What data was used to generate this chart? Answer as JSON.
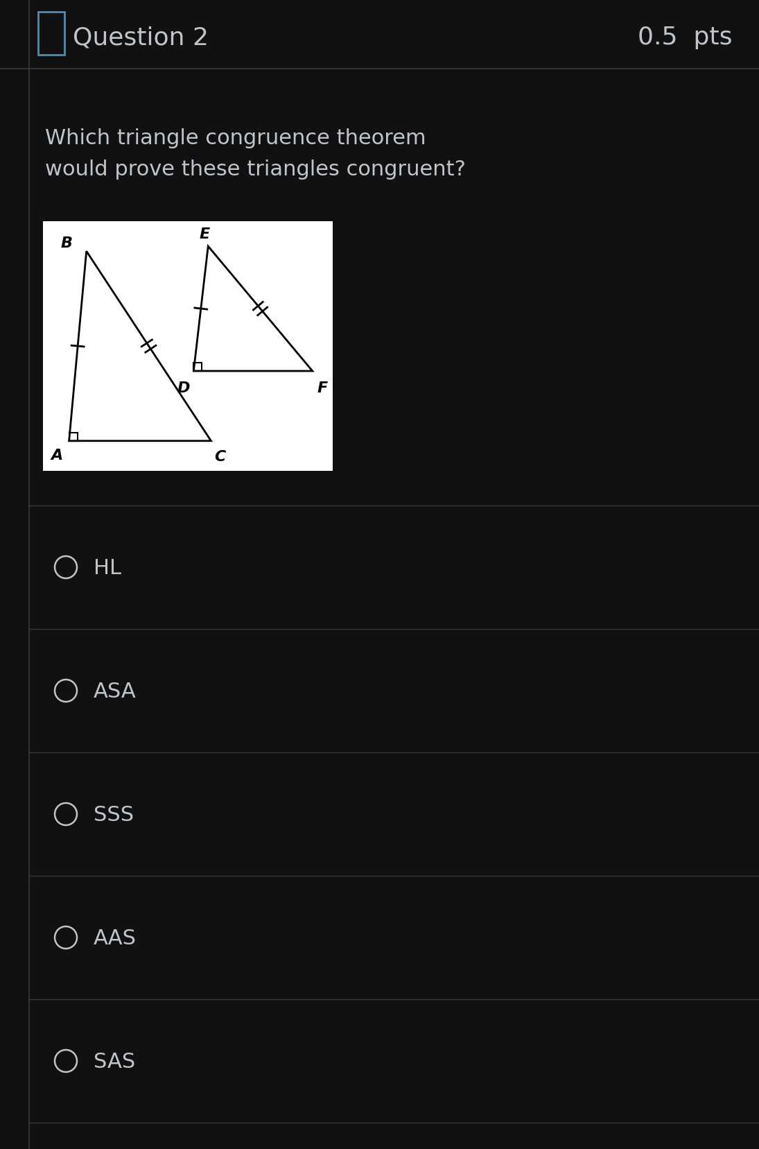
{
  "bg_color": "#111111",
  "header_bg": "#111111",
  "header_text": "Question 2",
  "header_pts": "0.5  pts",
  "header_text_color": "#c0c5cc",
  "question_text_color": "#c0c5cc",
  "options": [
    "HL",
    "ASA",
    "SSS",
    "AAS",
    "SAS"
  ],
  "option_text_color": "#c0c5cc",
  "divider_color": "#3a3a3a",
  "white_box_bg": "#ffffff",
  "icon_color": "#5a8aa8",
  "border_color": "#3a3a3a"
}
